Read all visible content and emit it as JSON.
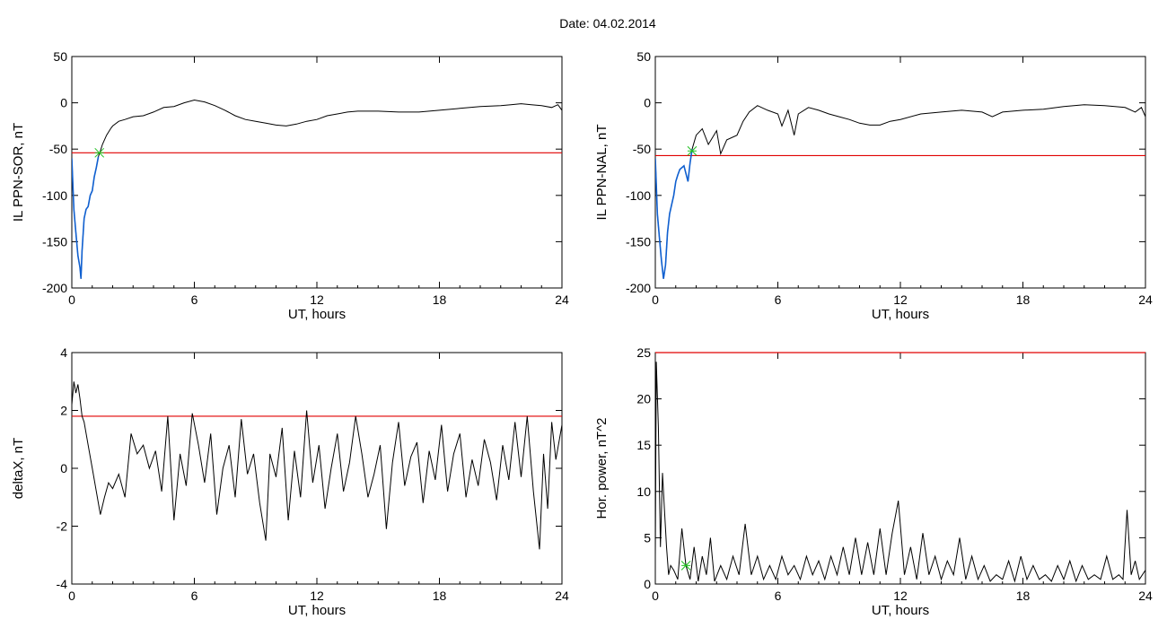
{
  "header": {
    "date_label": "Date:",
    "date_value": "04.02.2014"
  },
  "colors": {
    "trace": "#000000",
    "threshold": "#e00000",
    "highlight": "#1060d0",
    "marker": "#20c020"
  },
  "chart_data": [
    {
      "id": "il-sor",
      "type": "line",
      "xlabel": "UT, hours",
      "ylabel": "IL PPN-SOR, nT",
      "xlim": [
        0,
        24
      ],
      "ylim": [
        -200,
        50
      ],
      "xticks": [
        0,
        6,
        12,
        18,
        24
      ],
      "yticks": [
        50,
        0,
        -50,
        -100,
        -150,
        -200
      ],
      "threshold": -54,
      "marker": {
        "x": 1.35,
        "y": -54
      },
      "series": [
        {
          "x": [
            0,
            0.1,
            0.2,
            0.3,
            0.4,
            0.45,
            0.5,
            0.6,
            0.7,
            0.8,
            0.9,
            1.0,
            1.1,
            1.2,
            1.3,
            1.4,
            1.5,
            1.7,
            1.9,
            2.0,
            2.3,
            2.6,
            3.0,
            3.5,
            4.0,
            4.5,
            5.0,
            5.5,
            6.0,
            6.5,
            7.0,
            7.5,
            8.0,
            8.5,
            9.0,
            9.5,
            10.0,
            10.5,
            11.0,
            11.5,
            12.0,
            12.5,
            13.0,
            13.5,
            14.0,
            15.0,
            16.0,
            17.0,
            18.0,
            19.0,
            20.0,
            21.0,
            21.5,
            22.0,
            22.5,
            23.0,
            23.5,
            23.8,
            24.0
          ],
          "y": [
            -60,
            -115,
            -140,
            -165,
            -178,
            -190,
            -160,
            -125,
            -115,
            -112,
            -100,
            -95,
            -80,
            -70,
            -58,
            -52,
            -45,
            -35,
            -28,
            -25,
            -20,
            -18,
            -15,
            -14,
            -10,
            -5,
            -4,
            0,
            3,
            1,
            -3,
            -8,
            -14,
            -18,
            -20,
            -22,
            -24,
            -25,
            -23,
            -20,
            -18,
            -14,
            -12,
            -10,
            -9,
            -9,
            -10,
            -10,
            -8,
            -6,
            -4,
            -3,
            -2,
            -1,
            -2,
            -3,
            -5,
            -2,
            -8
          ]
        }
      ]
    },
    {
      "id": "il-nal",
      "type": "line",
      "xlabel": "UT, hours",
      "ylabel": "IL PPN-NAL, nT",
      "xlim": [
        0,
        24
      ],
      "ylim": [
        -200,
        50
      ],
      "xticks": [
        0,
        6,
        12,
        18,
        24
      ],
      "yticks": [
        50,
        0,
        -50,
        -100,
        -150,
        -200
      ],
      "threshold": -57,
      "marker": {
        "x": 1.8,
        "y": -52
      },
      "series": [
        {
          "x": [
            0,
            0.1,
            0.2,
            0.3,
            0.4,
            0.5,
            0.6,
            0.7,
            0.8,
            0.9,
            1.0,
            1.1,
            1.2,
            1.4,
            1.6,
            1.7,
            1.8,
            2.0,
            2.3,
            2.6,
            3.0,
            3.2,
            3.5,
            4.0,
            4.3,
            4.6,
            5.0,
            5.5,
            6.0,
            6.2,
            6.5,
            6.8,
            7.0,
            7.5,
            8.0,
            8.5,
            9.0,
            9.5,
            10.0,
            10.5,
            11.0,
            11.5,
            12.0,
            13.0,
            14.0,
            15.0,
            16.0,
            16.5,
            17.0,
            18.0,
            19.0,
            20.0,
            21.0,
            22.0,
            23.0,
            23.5,
            23.8,
            24.0
          ],
          "y": [
            -60,
            -120,
            -145,
            -170,
            -190,
            -175,
            -140,
            -120,
            -110,
            -100,
            -85,
            -78,
            -72,
            -68,
            -85,
            -65,
            -50,
            -35,
            -28,
            -45,
            -30,
            -55,
            -40,
            -35,
            -20,
            -10,
            -3,
            -8,
            -12,
            -25,
            -8,
            -35,
            -12,
            -5,
            -8,
            -12,
            -15,
            -18,
            -22,
            -24,
            -24,
            -20,
            -18,
            -12,
            -10,
            -8,
            -10,
            -15,
            -10,
            -8,
            -7,
            -4,
            -2,
            -3,
            -5,
            -10,
            -5,
            -15
          ]
        }
      ]
    },
    {
      "id": "deltax",
      "type": "line",
      "xlabel": "UT, hours",
      "ylabel": "deltaX, nT",
      "xlim": [
        0,
        24
      ],
      "ylim": [
        -4,
        4
      ],
      "xticks": [
        0,
        6,
        12,
        18,
        24
      ],
      "yticks": [
        4,
        2,
        0,
        -2,
        -4
      ],
      "threshold": 1.8,
      "series": [
        {
          "x": [
            0,
            0.1,
            0.2,
            0.3,
            0.4,
            0.5,
            0.6,
            0.8,
            1.0,
            1.2,
            1.4,
            1.6,
            1.8,
            2.0,
            2.3,
            2.6,
            2.9,
            3.2,
            3.5,
            3.8,
            4.1,
            4.4,
            4.7,
            5.0,
            5.3,
            5.6,
            5.9,
            6.2,
            6.5,
            6.8,
            7.1,
            7.4,
            7.7,
            8.0,
            8.3,
            8.6,
            8.9,
            9.2,
            9.5,
            9.7,
            10.0,
            10.3,
            10.6,
            10.9,
            11.2,
            11.5,
            11.8,
            12.1,
            12.4,
            12.7,
            13.0,
            13.3,
            13.6,
            13.9,
            14.2,
            14.5,
            14.8,
            15.1,
            15.4,
            15.7,
            16.0,
            16.3,
            16.6,
            16.9,
            17.2,
            17.5,
            17.8,
            18.1,
            18.4,
            18.7,
            19.0,
            19.3,
            19.6,
            19.9,
            20.2,
            20.5,
            20.8,
            21.1,
            21.4,
            21.7,
            22.0,
            22.3,
            22.6,
            22.9,
            23.1,
            23.3,
            23.5,
            23.7,
            24.0
          ],
          "y": [
            2.2,
            3.0,
            2.6,
            2.9,
            2.4,
            1.8,
            1.6,
            0.8,
            0.0,
            -0.8,
            -1.6,
            -1.0,
            -0.5,
            -0.7,
            -0.2,
            -1.0,
            1.2,
            0.5,
            0.8,
            0.0,
            0.6,
            -0.8,
            1.8,
            -1.8,
            0.5,
            -0.6,
            1.9,
            0.8,
            -0.5,
            1.2,
            -1.6,
            0.0,
            0.8,
            -1.0,
            1.7,
            -0.2,
            0.5,
            -1.2,
            -2.5,
            0.5,
            -0.3,
            1.4,
            -1.8,
            0.6,
            -1.0,
            2.0,
            -0.5,
            0.8,
            -1.4,
            0.0,
            1.2,
            -0.8,
            0.2,
            1.8,
            0.5,
            -1.0,
            -0.2,
            0.8,
            -2.1,
            0.2,
            1.6,
            -0.6,
            0.4,
            0.9,
            -1.2,
            0.6,
            -0.4,
            1.5,
            -0.8,
            0.5,
            1.2,
            -1.0,
            0.3,
            -0.6,
            1.0,
            0.2,
            -1.1,
            0.8,
            -0.4,
            1.6,
            -0.3,
            1.8,
            -0.8,
            -2.8,
            0.5,
            -1.4,
            1.6,
            0.3,
            1.5
          ]
        }
      ]
    },
    {
      "id": "hor-power",
      "type": "line",
      "xlabel": "UT, hours",
      "ylabel": "Hor. power, nT^2",
      "xlim": [
        0,
        24
      ],
      "ylim": [
        0,
        25
      ],
      "xticks": [
        0,
        6,
        12,
        18,
        24
      ],
      "yticks": [
        25,
        20,
        15,
        10,
        5,
        0
      ],
      "threshold": 25,
      "marker": {
        "x": 1.5,
        "y": 2
      },
      "series": [
        {
          "x": [
            0,
            0.05,
            0.15,
            0.25,
            0.35,
            0.45,
            0.55,
            0.65,
            0.75,
            0.9,
            1.0,
            1.1,
            1.3,
            1.5,
            1.7,
            1.9,
            2.1,
            2.3,
            2.5,
            2.7,
            2.9,
            3.2,
            3.5,
            3.8,
            4.1,
            4.4,
            4.7,
            5.0,
            5.3,
            5.6,
            5.9,
            6.2,
            6.5,
            6.8,
            7.1,
            7.4,
            7.7,
            8.0,
            8.3,
            8.6,
            8.9,
            9.2,
            9.5,
            9.8,
            10.1,
            10.4,
            10.7,
            11.0,
            11.3,
            11.6,
            11.9,
            12.2,
            12.5,
            12.8,
            13.1,
            13.4,
            13.7,
            14.0,
            14.3,
            14.6,
            14.9,
            15.2,
            15.5,
            15.8,
            16.1,
            16.4,
            16.7,
            17.0,
            17.3,
            17.6,
            17.9,
            18.2,
            18.5,
            18.8,
            19.1,
            19.4,
            19.7,
            20.0,
            20.3,
            20.6,
            20.9,
            21.2,
            21.5,
            21.8,
            22.1,
            22.4,
            22.7,
            22.9,
            23.1,
            23.3,
            23.5,
            23.7,
            24.0
          ],
          "y": [
            3,
            24,
            17,
            4,
            12,
            8,
            4,
            1,
            2,
            1.5,
            1,
            0.5,
            6,
            2,
            0.5,
            4,
            0.3,
            3,
            1,
            5,
            0.3,
            2,
            0.5,
            3,
            1,
            6.5,
            1,
            3,
            0.5,
            2,
            0.5,
            3,
            1,
            2,
            0.5,
            3,
            1,
            2.5,
            0.5,
            3,
            1,
            4,
            1,
            5,
            1,
            4.5,
            1,
            6,
            1,
            5.5,
            9,
            1,
            4,
            0.5,
            5.5,
            1,
            3,
            0.5,
            2.5,
            1,
            5,
            0.5,
            3,
            0.5,
            2,
            0.3,
            1,
            0.5,
            2.5,
            0.3,
            3,
            0.5,
            2,
            0.5,
            1,
            0.3,
            2,
            0.5,
            2.5,
            0.3,
            2,
            0.5,
            1,
            0.5,
            3,
            0.5,
            1,
            0.5,
            8,
            1,
            2.5,
            0.5,
            1.5
          ]
        }
      ]
    }
  ]
}
